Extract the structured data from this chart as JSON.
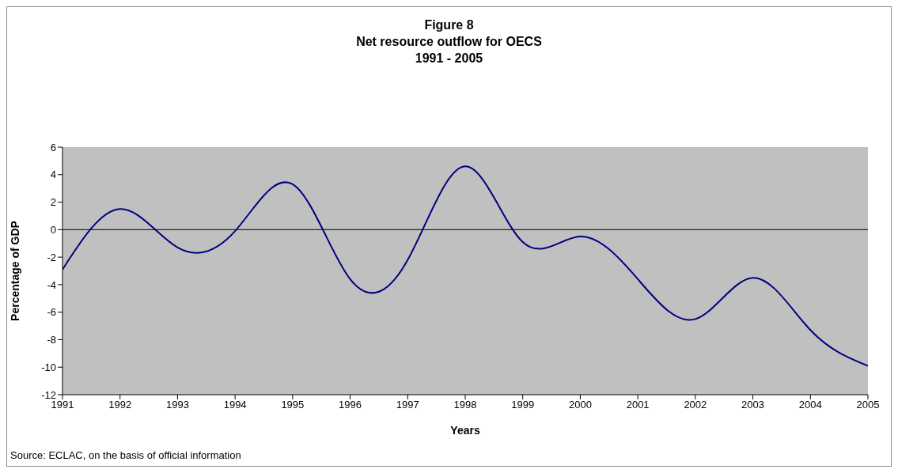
{
  "chart_data": {
    "type": "line",
    "title": "Figure 8\nNet resource outflow for OECS\n1991 - 2005",
    "xlabel": "Years",
    "ylabel": "Percentage of GDP",
    "x": [
      1991,
      1992,
      1993,
      1994,
      1995,
      1996,
      1997,
      1998,
      1999,
      2000,
      2001,
      2002,
      2003,
      2004,
      2005
    ],
    "xlim": [
      1991,
      2005
    ],
    "xticks": [
      1991,
      1992,
      1993,
      1994,
      1995,
      1996,
      1997,
      1998,
      1999,
      2000,
      2001,
      2002,
      2003,
      2004,
      2005
    ],
    "series": [
      {
        "color": "#000080",
        "values": [
          -2.9,
          1.5,
          -1.3,
          -0.1,
          3.3,
          -3.6,
          -2.2,
          4.6,
          -0.9,
          -0.5,
          -3.6,
          -6.5,
          -3.5,
          -7.3,
          -9.9
        ]
      }
    ],
    "ylim": [
      -12,
      6
    ],
    "yticks": [
      -12,
      -10,
      -8,
      -6,
      -4,
      -2,
      0,
      2,
      4,
      6
    ],
    "ref_lines": [
      {
        "axis": "y",
        "value": 0,
        "color": "#000000"
      }
    ],
    "grid": false,
    "marker": "none",
    "line_style": "solid",
    "annotations": [
      "Source: ECLAC, on the basis of official information"
    ]
  }
}
